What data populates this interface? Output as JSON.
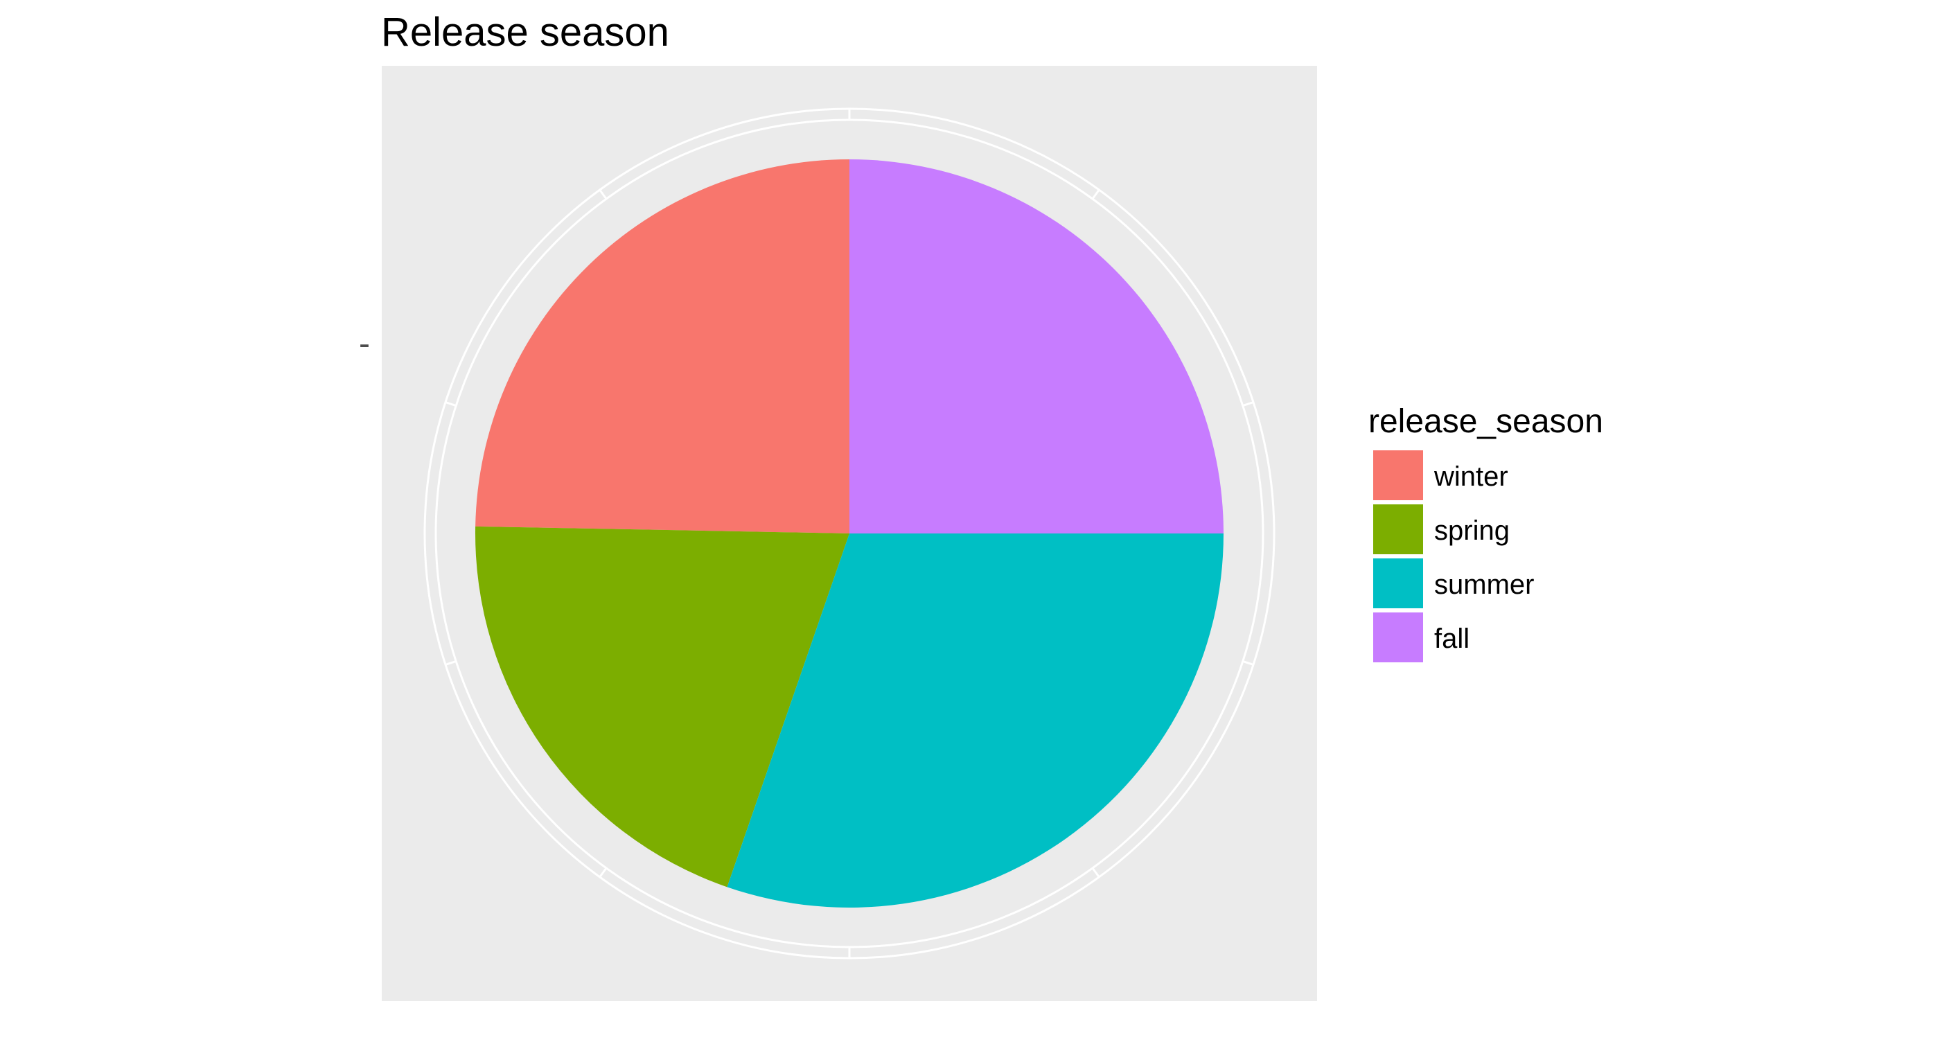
{
  "chart_data": {
    "type": "pie",
    "title": "Release season",
    "xlabel": "",
    "ylabel": "",
    "legend": {
      "title": "release_season",
      "placement": "right"
    },
    "categories": [
      "winter",
      "spring",
      "summer",
      "fall"
    ],
    "values": [
      24.7,
      20.0,
      30.3,
      25.0
    ],
    "colors": [
      "#F8766D",
      "#7CAE00",
      "#00BFC4",
      "#C77CFF"
    ],
    "start_angle_deg": 0,
    "direction": "counterclockwise",
    "background": "#EBEBEB",
    "grid": true,
    "grid_color": "#FFFFFF",
    "y_tick_labels": [
      "-"
    ]
  }
}
